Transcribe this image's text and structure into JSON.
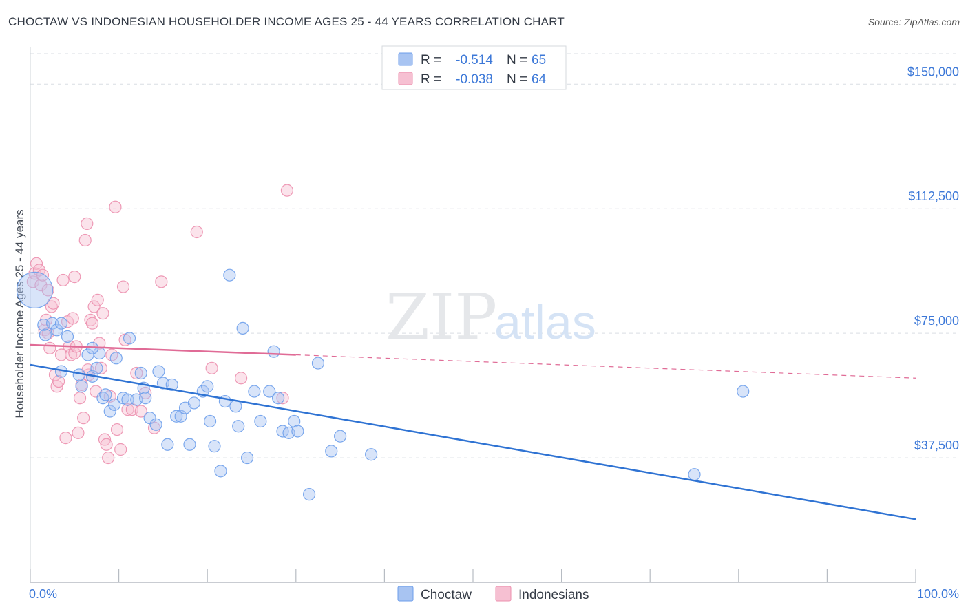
{
  "header": {
    "title": "CHOCTAW VS INDONESIAN HOUSEHOLDER INCOME AGES 25 - 44 YEARS CORRELATION CHART",
    "source": "Source: ZipAtlas.com"
  },
  "watermark": {
    "zip": "ZIP",
    "atlas": "atlas"
  },
  "colors": {
    "choctaw": "#6d9eeb",
    "choctaw_fill": "#a8c4f2",
    "choctaw_line": "#2f73d3",
    "indonesians": "#ec8fae",
    "indonesians_fill": "#f6c0d2",
    "indonesians_line": "#e06b96",
    "axis_label_blue": "#3c78d8",
    "grid": "#d9dde3"
  },
  "chart_data": {
    "type": "scatter",
    "xlabel": "",
    "ylabel": "Householder Income Ages 25 - 44 years",
    "xlim": [
      0,
      100
    ],
    "ylim": [
      0,
      160000
    ],
    "x_tick_labels": [
      "0.0%",
      "100.0%"
    ],
    "y_ticks": [
      37500,
      75000,
      112500,
      150000
    ],
    "y_tick_labels": [
      "$37,500",
      "$75,000",
      "$112,500",
      "$150,000"
    ],
    "grid": "horizontal dashed",
    "legend_position": "top-center",
    "legend": [
      {
        "series": "Choctaw",
        "r_label": "R = ",
        "r_value": "-0.514",
        "n_label": "N = ",
        "n_value": "65"
      },
      {
        "series": "Indonesians",
        "r_label": "R = ",
        "r_value": "-0.038",
        "n_label": "N = ",
        "n_value": "64"
      }
    ],
    "bottom_legend": [
      "Choctaw",
      "Indonesians"
    ],
    "series": [
      {
        "name": "Choctaw",
        "trend": {
          "x": [
            0,
            100
          ],
          "y": [
            65500,
            19000
          ],
          "dashed_from": null
        },
        "points": [
          [
            0.5,
            88000,
            "big"
          ],
          [
            1.5,
            77500
          ],
          [
            1.7,
            74500
          ],
          [
            2.5,
            78000
          ],
          [
            3.0,
            76000
          ],
          [
            3.5,
            78000
          ],
          [
            4.2,
            74000
          ],
          [
            3.5,
            63500
          ],
          [
            5.5,
            62500
          ],
          [
            5.8,
            59000
          ],
          [
            6.5,
            68500
          ],
          [
            7.0,
            62000
          ],
          [
            7.5,
            64500
          ],
          [
            7.8,
            69000
          ],
          [
            8.2,
            55500
          ],
          [
            8.5,
            56500
          ],
          [
            9.0,
            51500
          ],
          [
            9.5,
            53500
          ],
          [
            9.7,
            67500
          ],
          [
            10.5,
            55500
          ],
          [
            11.0,
            55000
          ],
          [
            11.2,
            73500
          ],
          [
            12.0,
            55000
          ],
          [
            12.5,
            63000
          ],
          [
            12.8,
            58500
          ],
          [
            13.0,
            55500
          ],
          [
            13.5,
            49500
          ],
          [
            14.2,
            47500
          ],
          [
            14.5,
            63500
          ],
          [
            15.0,
            60000
          ],
          [
            15.5,
            41500
          ],
          [
            16.0,
            59500
          ],
          [
            16.5,
            50000
          ],
          [
            17.0,
            50000
          ],
          [
            17.5,
            52500
          ],
          [
            18.0,
            41500
          ],
          [
            18.5,
            54000
          ],
          [
            19.5,
            57500
          ],
          [
            20.0,
            59000
          ],
          [
            20.3,
            48500
          ],
          [
            20.8,
            41000
          ],
          [
            21.5,
            33500
          ],
          [
            22.0,
            54500
          ],
          [
            22.5,
            92500
          ],
          [
            23.2,
            53000
          ],
          [
            23.5,
            47000
          ],
          [
            24.0,
            76500
          ],
          [
            24.5,
            37500
          ],
          [
            25.3,
            57500
          ],
          [
            26.0,
            48500
          ],
          [
            27.0,
            57500
          ],
          [
            27.5,
            69500
          ],
          [
            28.0,
            55500
          ],
          [
            28.5,
            45500
          ],
          [
            29.2,
            45000
          ],
          [
            29.8,
            48500
          ],
          [
            30.2,
            45500
          ],
          [
            31.5,
            26500
          ],
          [
            32.5,
            66000
          ],
          [
            34.0,
            39500
          ],
          [
            35.0,
            44000
          ],
          [
            38.5,
            38500
          ],
          [
            80.5,
            57500
          ],
          [
            75.0,
            32500
          ],
          [
            7.0,
            70500
          ]
        ]
      },
      {
        "name": "Indonesians",
        "trend": {
          "x": [
            0,
            100
          ],
          "y": [
            71500,
            61500
          ],
          "dashed_from": 30
        },
        "points": [
          [
            0.3,
            90500
          ],
          [
            0.5,
            93000
          ],
          [
            0.7,
            96000
          ],
          [
            1.0,
            94000
          ],
          [
            1.2,
            89500
          ],
          [
            1.4,
            92500
          ],
          [
            1.6,
            76000
          ],
          [
            1.8,
            79000
          ],
          [
            2.0,
            75000
          ],
          [
            2.2,
            70500
          ],
          [
            2.4,
            83000
          ],
          [
            2.6,
            84000
          ],
          [
            2.8,
            62500
          ],
          [
            3.0,
            59000
          ],
          [
            3.2,
            60500
          ],
          [
            3.5,
            68500
          ],
          [
            3.7,
            91000
          ],
          [
            4.0,
            43500
          ],
          [
            4.2,
            78500
          ],
          [
            4.4,
            71000
          ],
          [
            4.6,
            68500
          ],
          [
            4.8,
            79500
          ],
          [
            5.0,
            69000
          ],
          [
            5.2,
            71000
          ],
          [
            5.4,
            45000
          ],
          [
            5.6,
            55500
          ],
          [
            5.8,
            59500
          ],
          [
            6.0,
            49500
          ],
          [
            6.2,
            103000
          ],
          [
            6.4,
            108000
          ],
          [
            6.6,
            62500
          ],
          [
            6.8,
            79000
          ],
          [
            7.0,
            78000
          ],
          [
            7.2,
            83000
          ],
          [
            7.4,
            57500
          ],
          [
            7.6,
            85000
          ],
          [
            7.8,
            72000
          ],
          [
            8.0,
            64500
          ],
          [
            8.2,
            81000
          ],
          [
            8.4,
            43000
          ],
          [
            8.6,
            41500
          ],
          [
            8.8,
            37500
          ],
          [
            9.0,
            56000
          ],
          [
            9.2,
            68500
          ],
          [
            9.6,
            113000
          ],
          [
            9.8,
            46000
          ],
          [
            10.2,
            40000
          ],
          [
            10.5,
            89000
          ],
          [
            10.7,
            73000
          ],
          [
            11.0,
            52000
          ],
          [
            11.5,
            52000
          ],
          [
            12.0,
            63000
          ],
          [
            12.5,
            51500
          ],
          [
            13.0,
            57000
          ],
          [
            14.0,
            46500
          ],
          [
            14.8,
            90500
          ],
          [
            18.8,
            105500
          ],
          [
            20.5,
            64500
          ],
          [
            23.8,
            61500
          ],
          [
            28.5,
            55500
          ],
          [
            29.0,
            118000
          ],
          [
            5.0,
            92000
          ],
          [
            2.0,
            88000
          ],
          [
            6.5,
            64000
          ]
        ]
      }
    ]
  }
}
